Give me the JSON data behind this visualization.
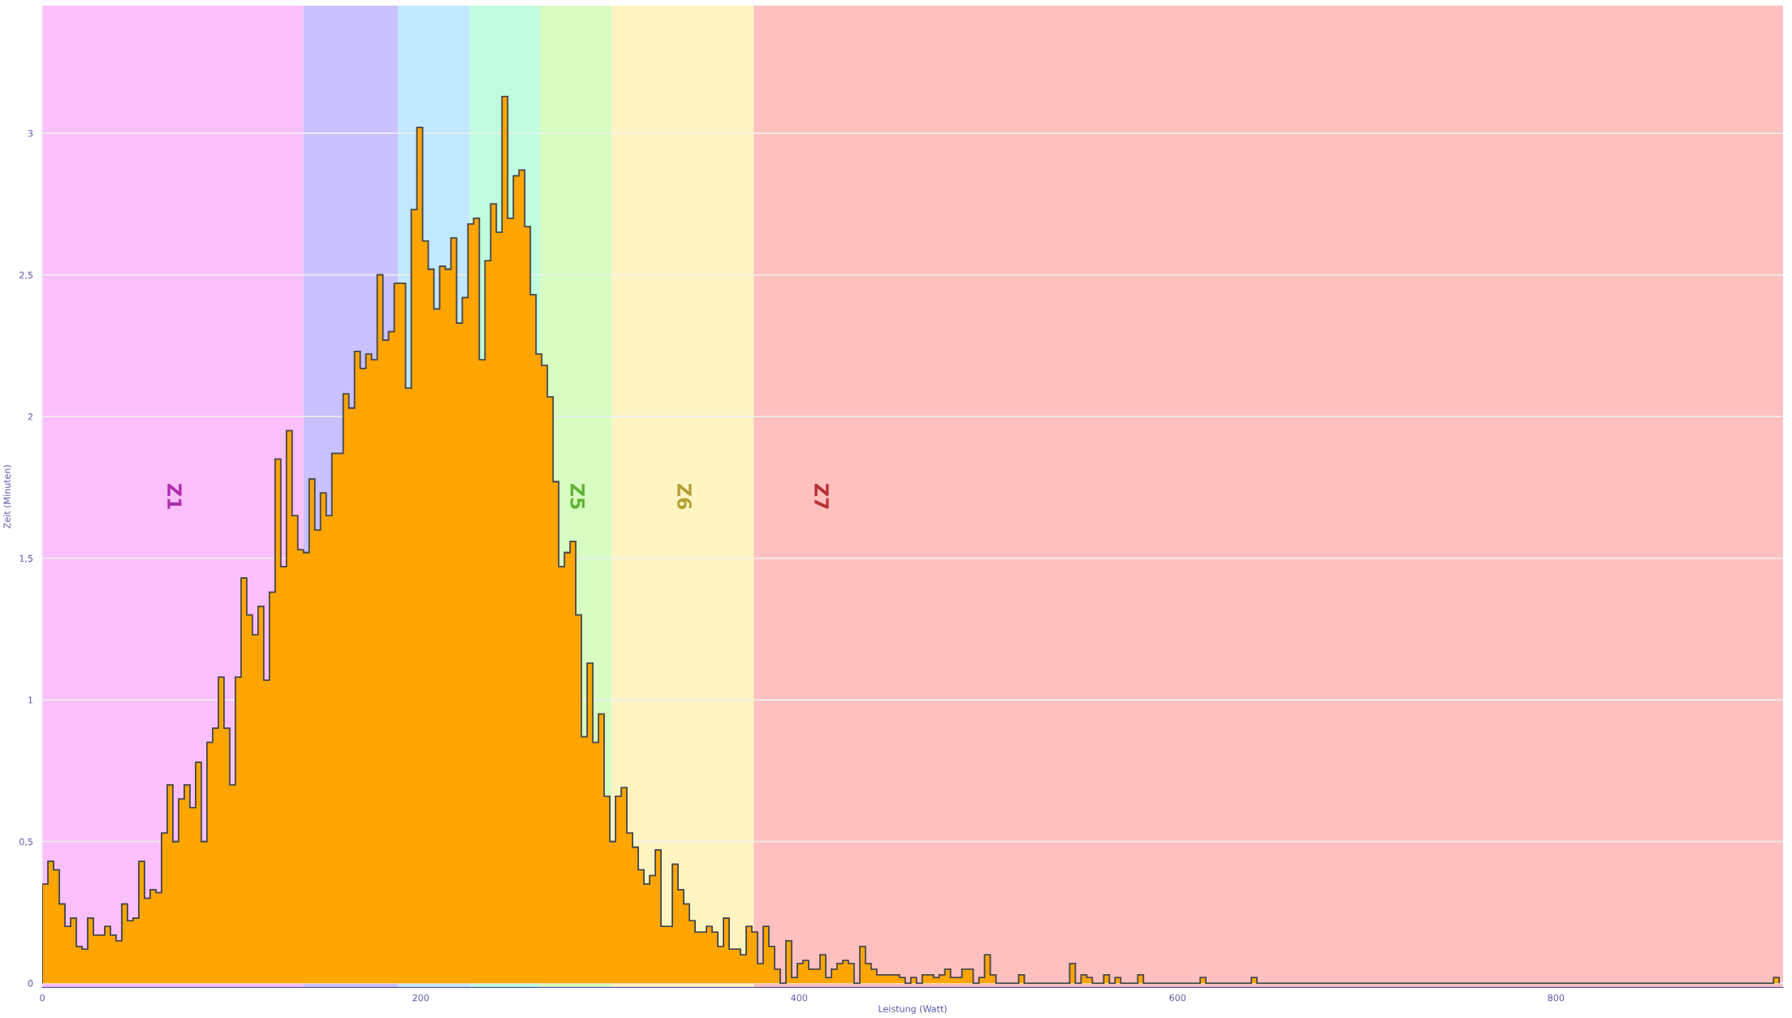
{
  "chart_data": {
    "type": "histogram",
    "xlabel": "Leistung (Watt)",
    "ylabel": "Zeit (Minuten)",
    "color": "#ffa500",
    "bins": [
      0,
      3,
      6,
      9,
      12,
      15,
      18,
      21,
      24,
      27,
      30,
      33,
      36,
      39,
      42,
      45,
      48,
      51,
      54,
      57,
      60,
      63,
      66,
      69,
      72,
      75,
      78,
      81,
      84,
      87,
      90,
      93,
      96,
      99,
      102,
      105,
      108,
      111,
      114,
      117,
      120,
      123,
      126,
      129,
      132,
      135,
      138,
      141,
      144,
      147,
      150,
      153,
      156,
      159,
      162,
      165,
      168,
      171,
      174,
      177,
      180,
      183,
      186,
      189,
      192,
      195,
      198,
      201,
      204,
      207,
      210,
      213,
      216,
      219,
      222,
      225,
      228,
      231,
      234,
      237,
      240,
      243,
      246,
      249,
      252,
      255,
      258,
      261,
      264,
      267,
      270,
      273,
      276,
      279,
      282,
      285,
      288,
      291,
      294,
      297,
      300,
      303,
      306,
      309,
      312,
      315,
      318,
      321,
      324,
      327,
      330,
      333,
      336,
      339,
      342,
      345,
      348,
      351,
      354,
      357,
      360,
      363,
      366,
      369,
      372,
      375,
      378,
      381,
      384,
      387,
      390,
      393,
      396,
      399,
      402,
      405,
      408,
      411,
      414,
      417,
      420,
      423,
      426,
      429,
      432,
      435,
      438,
      441,
      444,
      447,
      450,
      453,
      456,
      459,
      462,
      465,
      468,
      471,
      474,
      477,
      480,
      483,
      486,
      489,
      492,
      495,
      498,
      501,
      504,
      507,
      510,
      513,
      516,
      519,
      522,
      525,
      528,
      531,
      534,
      537,
      540,
      543,
      546,
      549,
      552,
      555,
      558,
      561,
      564,
      567,
      570,
      573,
      576,
      579,
      582,
      585,
      588,
      591,
      594,
      597,
      600,
      603,
      606,
      609,
      612,
      615,
      618,
      621,
      624,
      627,
      630,
      633,
      636,
      639,
      642,
      645,
      648,
      651,
      654,
      657,
      660,
      663,
      666,
      669,
      672,
      675,
      678,
      681,
      684,
      687,
      690,
      693,
      696,
      699,
      702,
      705,
      708,
      711,
      714,
      717,
      720,
      723,
      726,
      729,
      732,
      735,
      738,
      741,
      744,
      747,
      750,
      753,
      756,
      759,
      762,
      765,
      768,
      771,
      774,
      777,
      780,
      783,
      786,
      789,
      792,
      795,
      798,
      801,
      804,
      807,
      810,
      813,
      816,
      819,
      822,
      825,
      828,
      831,
      834,
      837,
      840,
      843,
      846,
      849,
      852,
      855,
      858,
      861,
      864,
      867,
      870,
      873,
      876,
      879,
      882,
      885,
      888,
      891,
      894,
      897,
      900,
      903,
      906,
      909,
      912,
      915,
      918
    ],
    "values": [
      0.35,
      0.43,
      0.4,
      0.28,
      0.2,
      0.23,
      0.13,
      0.12,
      0.23,
      0.17,
      0.17,
      0.2,
      0.17,
      0.15,
      0.28,
      0.22,
      0.23,
      0.43,
      0.3,
      0.33,
      0.32,
      0.53,
      0.7,
      0.5,
      0.65,
      0.7,
      0.62,
      0.78,
      0.5,
      0.85,
      0.9,
      1.08,
      0.9,
      0.7,
      1.08,
      1.43,
      1.3,
      1.23,
      1.33,
      1.07,
      1.38,
      1.85,
      1.47,
      1.95,
      1.65,
      1.53,
      1.52,
      1.78,
      1.6,
      1.73,
      1.65,
      1.87,
      1.87,
      2.08,
      2.03,
      2.23,
      2.17,
      2.22,
      2.2,
      2.5,
      2.27,
      2.3,
      2.47,
      2.47,
      2.1,
      2.73,
      3.02,
      2.62,
      2.52,
      2.38,
      2.53,
      2.52,
      2.63,
      2.33,
      2.42,
      2.68,
      2.7,
      2.2,
      2.55,
      2.75,
      2.65,
      3.13,
      2.7,
      2.85,
      2.87,
      2.67,
      2.43,
      2.22,
      2.18,
      2.07,
      1.77,
      1.47,
      1.52,
      1.56,
      1.3,
      0.87,
      1.13,
      0.85,
      0.95,
      0.66,
      0.5,
      0.66,
      0.69,
      0.53,
      0.48,
      0.4,
      0.35,
      0.38,
      0.47,
      0.2,
      0.2,
      0.42,
      0.33,
      0.28,
      0.22,
      0.18,
      0.18,
      0.2,
      0.18,
      0.13,
      0.23,
      0.12,
      0.12,
      0.1,
      0.2,
      0.18,
      0.07,
      0.2,
      0.13,
      0.05,
      0,
      0.15,
      0.02,
      0.07,
      0.08,
      0.05,
      0.05,
      0.1,
      0.02,
      0.05,
      0.07,
      0.08,
      0.07,
      0,
      0.13,
      0.07,
      0.05,
      0.03,
      0.03,
      0.03,
      0.03,
      0.02,
      0,
      0.02,
      0,
      0.03,
      0.03,
      0.02,
      0.03,
      0.05,
      0.02,
      0.02,
      0.05,
      0.05,
      0,
      0.02,
      0.1,
      0.03,
      0,
      0,
      0,
      0,
      0.03,
      0,
      0,
      0,
      0,
      0,
      0,
      0,
      0,
      0.07,
      0,
      0.03,
      0.02,
      0,
      0,
      0.03,
      0,
      0.02,
      0,
      0,
      0,
      0.03,
      0,
      0,
      0,
      0,
      0,
      0,
      0,
      0,
      0,
      0,
      0.02,
      0,
      0,
      0,
      0,
      0,
      0,
      0,
      0,
      0.02,
      0,
      0,
      0,
      0,
      0,
      0,
      0,
      0,
      0,
      0,
      0,
      0,
      0,
      0,
      0,
      0,
      0,
      0,
      0,
      0,
      0,
      0,
      0,
      0,
      0,
      0,
      0,
      0,
      0,
      0,
      0,
      0,
      0,
      0,
      0,
      0,
      0,
      0,
      0,
      0,
      0,
      0,
      0,
      0,
      0,
      0,
      0,
      0,
      0,
      0,
      0,
      0,
      0,
      0,
      0,
      0,
      0,
      0,
      0,
      0,
      0,
      0,
      0,
      0,
      0,
      0,
      0,
      0,
      0,
      0,
      0,
      0,
      0,
      0,
      0,
      0,
      0,
      0,
      0,
      0,
      0,
      0,
      0,
      0,
      0,
      0,
      0,
      0,
      0,
      0,
      0,
      0.02
    ],
    "xlim": [
      0,
      920
    ],
    "ylim": [
      -0.015,
      3.45
    ],
    "xticks": [
      0,
      200,
      400,
      600,
      800
    ],
    "yticks": [
      0,
      {
        "value": 0.5,
        "label": "0,5"
      },
      1,
      {
        "value": 1.5,
        "label": "1,5"
      },
      2,
      {
        "value": 2.5,
        "label": "2,5"
      },
      3
    ],
    "grid": "y",
    "bands": [
      {
        "axis": "x",
        "from": 0,
        "to": 138,
        "label": "Z1",
        "color": "#fbbffb"
      },
      {
        "axis": "x",
        "from": 138,
        "to": 188,
        "color": "#c9c1fe"
      },
      {
        "axis": "x",
        "from": 188,
        "to": 226,
        "color": "#c2e8fd"
      },
      {
        "axis": "x",
        "from": 226,
        "to": 263,
        "color": "#c0fde0"
      },
      {
        "axis": "x",
        "from": 263,
        "to": 301,
        "label": "Z5",
        "color": "#d7fdc2"
      },
      {
        "axis": "x",
        "from": 301,
        "to": 376,
        "label": "Z6",
        "color": "#fef4c2"
      },
      {
        "axis": "x",
        "from": 376,
        "to": 920,
        "label": "Z7",
        "color": "#ffc0c0"
      }
    ]
  }
}
